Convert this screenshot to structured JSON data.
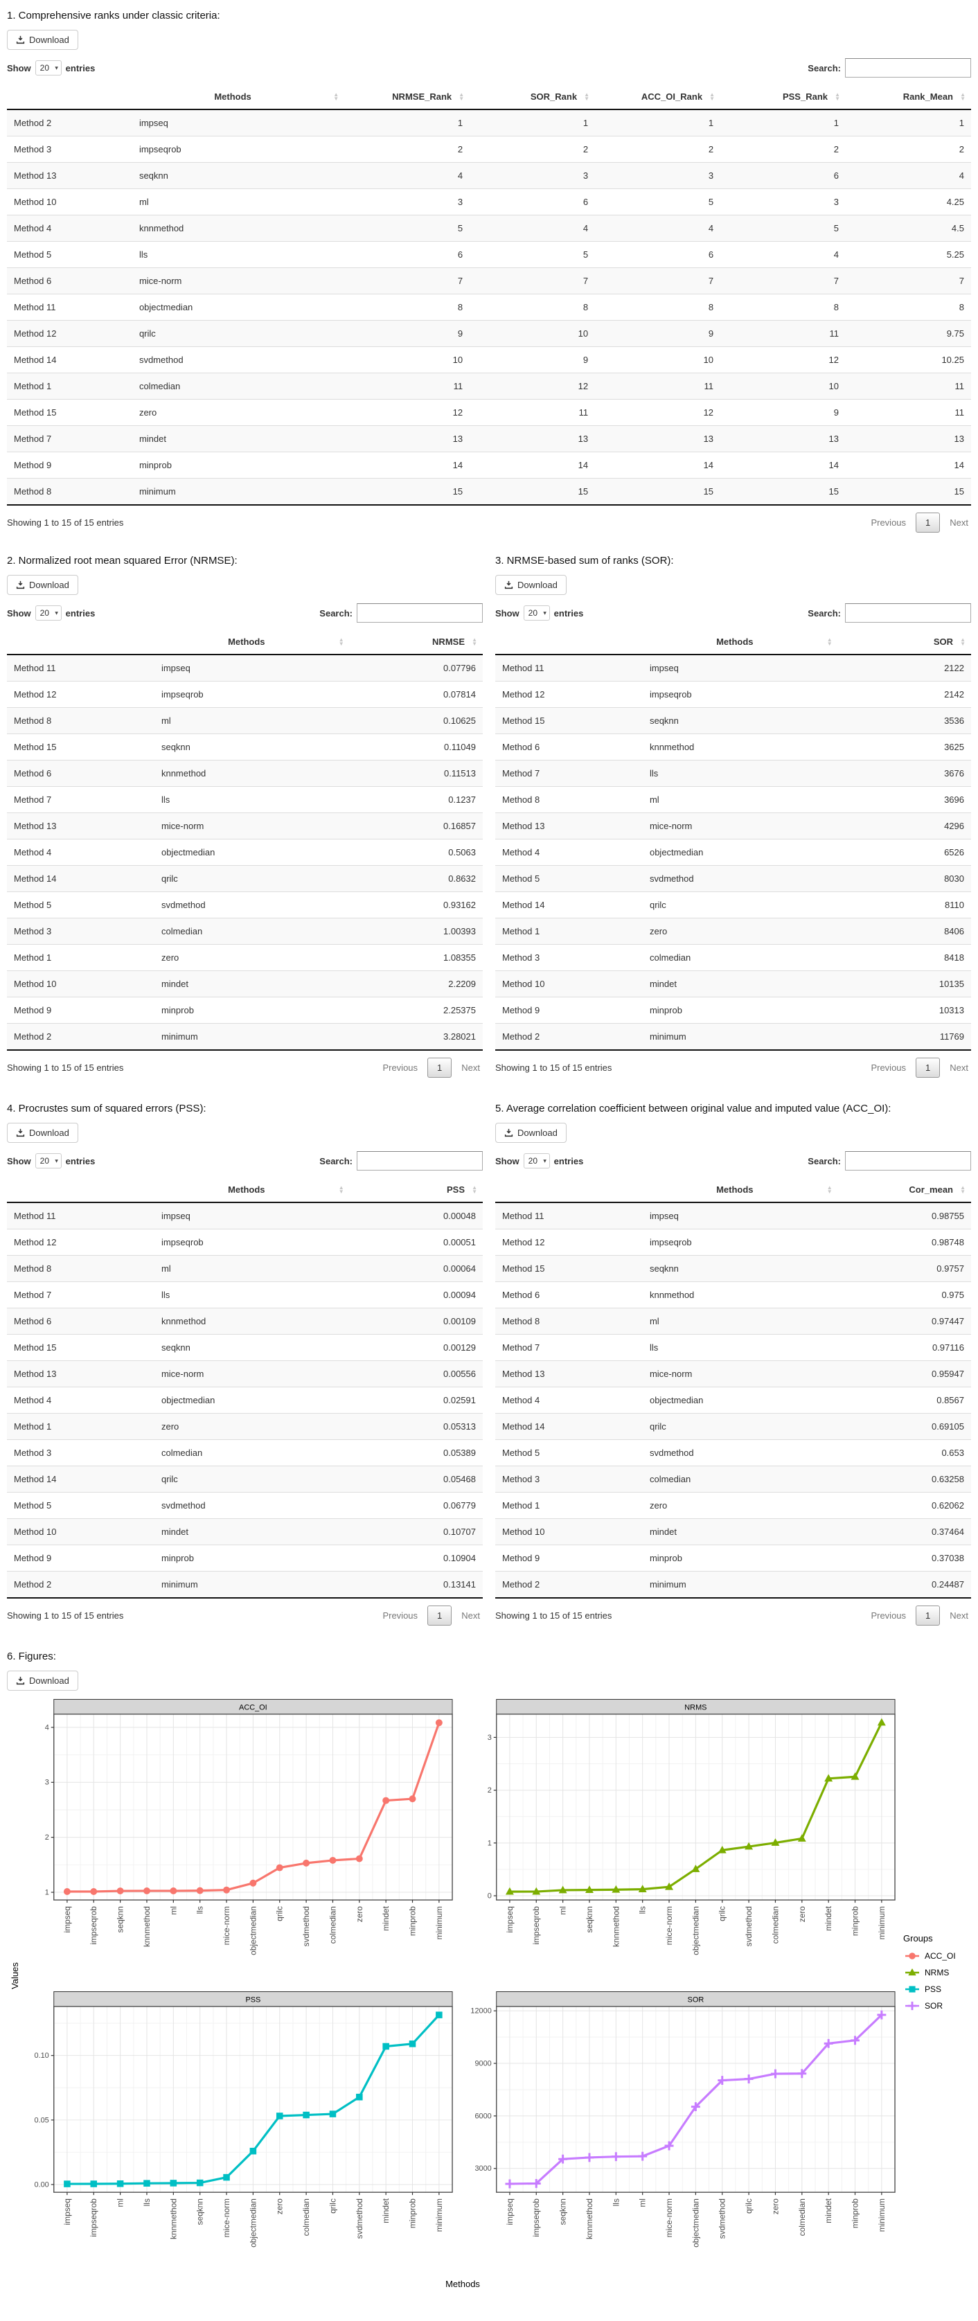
{
  "controls": {
    "download": "Download",
    "show": "Show",
    "page_length": "20",
    "entries": "entries",
    "search": "Search:",
    "info": "Showing 1 to 15 of 15 entries",
    "previous": "Previous",
    "page": "1",
    "next": "Next"
  },
  "sections": {
    "s1": {
      "title": "1. Comprehensive ranks under classic criteria:",
      "columns": [
        "",
        "Methods",
        "NRMSE_Rank",
        "SOR_Rank",
        "ACC_OI_Rank",
        "PSS_Rank",
        "Rank_Mean"
      ],
      "rows": [
        [
          "Method 2",
          "impseq",
          1,
          1,
          1,
          1,
          1
        ],
        [
          "Method 3",
          "impseqrob",
          2,
          2,
          2,
          2,
          2
        ],
        [
          "Method 13",
          "seqknn",
          4,
          3,
          3,
          6,
          4
        ],
        [
          "Method 10",
          "ml",
          3,
          6,
          5,
          3,
          4.25
        ],
        [
          "Method 4",
          "knnmethod",
          5,
          4,
          4,
          5,
          4.5
        ],
        [
          "Method 5",
          "lls",
          6,
          5,
          6,
          4,
          5.25
        ],
        [
          "Method 6",
          "mice-norm",
          7,
          7,
          7,
          7,
          7
        ],
        [
          "Method 11",
          "objectmedian",
          8,
          8,
          8,
          8,
          8
        ],
        [
          "Method 12",
          "qrilc",
          9,
          10,
          9,
          11,
          9.75
        ],
        [
          "Method 14",
          "svdmethod",
          10,
          9,
          10,
          12,
          10.25
        ],
        [
          "Method 1",
          "colmedian",
          11,
          12,
          11,
          10,
          11
        ],
        [
          "Method 15",
          "zero",
          12,
          11,
          12,
          9,
          11
        ],
        [
          "Method 7",
          "mindet",
          13,
          13,
          13,
          13,
          13
        ],
        [
          "Method 9",
          "minprob",
          14,
          14,
          14,
          14,
          14
        ],
        [
          "Method 8",
          "minimum",
          15,
          15,
          15,
          15,
          15
        ]
      ]
    },
    "s2": {
      "title": "2. Normalized root mean squared Error (NRMSE):",
      "columns": [
        "",
        "Methods",
        "NRMSE"
      ],
      "rows": [
        [
          "Method 11",
          "impseq",
          0.07796
        ],
        [
          "Method 12",
          "impseqrob",
          0.07814
        ],
        [
          "Method 8",
          "ml",
          0.10625
        ],
        [
          "Method 15",
          "seqknn",
          0.11049
        ],
        [
          "Method 6",
          "knnmethod",
          0.11513
        ],
        [
          "Method 7",
          "lls",
          0.1237
        ],
        [
          "Method 13",
          "mice-norm",
          0.16857
        ],
        [
          "Method 4",
          "objectmedian",
          0.5063
        ],
        [
          "Method 14",
          "qrilc",
          0.8632
        ],
        [
          "Method 5",
          "svdmethod",
          0.93162
        ],
        [
          "Method 3",
          "colmedian",
          1.00393
        ],
        [
          "Method 1",
          "zero",
          1.08355
        ],
        [
          "Method 10",
          "mindet",
          2.2209
        ],
        [
          "Method 9",
          "minprob",
          2.25375
        ],
        [
          "Method 2",
          "minimum",
          3.28021
        ]
      ]
    },
    "s3": {
      "title": "3. NRMSE-based sum of ranks (SOR):",
      "columns": [
        "",
        "Methods",
        "SOR"
      ],
      "rows": [
        [
          "Method 11",
          "impseq",
          2122
        ],
        [
          "Method 12",
          "impseqrob",
          2142
        ],
        [
          "Method 15",
          "seqknn",
          3536
        ],
        [
          "Method 6",
          "knnmethod",
          3625
        ],
        [
          "Method 7",
          "lls",
          3676
        ],
        [
          "Method 8",
          "ml",
          3696
        ],
        [
          "Method 13",
          "mice-norm",
          4296
        ],
        [
          "Method 4",
          "objectmedian",
          6526
        ],
        [
          "Method 5",
          "svdmethod",
          8030
        ],
        [
          "Method 14",
          "qrilc",
          8110
        ],
        [
          "Method 1",
          "zero",
          8406
        ],
        [
          "Method 3",
          "colmedian",
          8418
        ],
        [
          "Method 10",
          "mindet",
          10135
        ],
        [
          "Method 9",
          "minprob",
          10313
        ],
        [
          "Method 2",
          "minimum",
          11769
        ]
      ]
    },
    "s4": {
      "title": "4. Procrustes sum of squared errors (PSS):",
      "columns": [
        "",
        "Methods",
        "PSS"
      ],
      "rows": [
        [
          "Method 11",
          "impseq",
          0.00048
        ],
        [
          "Method 12",
          "impseqrob",
          0.00051
        ],
        [
          "Method 8",
          "ml",
          0.00064
        ],
        [
          "Method 7",
          "lls",
          0.00094
        ],
        [
          "Method 6",
          "knnmethod",
          0.00109
        ],
        [
          "Method 15",
          "seqknn",
          0.00129
        ],
        [
          "Method 13",
          "mice-norm",
          0.00556
        ],
        [
          "Method 4",
          "objectmedian",
          0.02591
        ],
        [
          "Method 1",
          "zero",
          0.05313
        ],
        [
          "Method 3",
          "colmedian",
          0.05389
        ],
        [
          "Method 14",
          "qrilc",
          0.05468
        ],
        [
          "Method 5",
          "svdmethod",
          0.06779
        ],
        [
          "Method 10",
          "mindet",
          0.10707
        ],
        [
          "Method 9",
          "minprob",
          0.10904
        ],
        [
          "Method 2",
          "minimum",
          0.13141
        ]
      ]
    },
    "s5": {
      "title": "5. Average correlation coefficient between original value and imputed value (ACC_OI):",
      "columns": [
        "",
        "Methods",
        "Cor_mean"
      ],
      "rows": [
        [
          "Method 11",
          "impseq",
          0.98755
        ],
        [
          "Method 12",
          "impseqrob",
          0.98748
        ],
        [
          "Method 15",
          "seqknn",
          0.9757
        ],
        [
          "Method 6",
          "knnmethod",
          0.975
        ],
        [
          "Method 8",
          "ml",
          0.97447
        ],
        [
          "Method 7",
          "lls",
          0.97116
        ],
        [
          "Method 13",
          "mice-norm",
          0.95947
        ],
        [
          "Method 4",
          "objectmedian",
          0.8567
        ],
        [
          "Method 14",
          "qrilc",
          0.69105
        ],
        [
          "Method 5",
          "svdmethod",
          0.653
        ],
        [
          "Method 3",
          "colmedian",
          0.63258
        ],
        [
          "Method 1",
          "zero",
          0.62062
        ],
        [
          "Method 10",
          "mindet",
          0.37464
        ],
        [
          "Method 9",
          "minprob",
          0.37038
        ],
        [
          "Method 2",
          "minimum",
          0.24487
        ]
      ]
    },
    "s6": {
      "title": "6. Figures:"
    }
  },
  "figure": {
    "ylabel": "Values",
    "xlabel": "Methods",
    "legend_title": "Groups",
    "legend": [
      {
        "label": "ACC_OI",
        "color": "#F8766D",
        "marker": "circle"
      },
      {
        "label": "NRMS",
        "color": "#7CAE00",
        "marker": "triangle"
      },
      {
        "label": "PSS",
        "color": "#00BFC4",
        "marker": "square"
      },
      {
        "label": "SOR",
        "color": "#C77CFF",
        "marker": "plus"
      }
    ]
  },
  "chart_data": [
    {
      "type": "line",
      "title": "ACC_OI",
      "color": "#F8766D",
      "marker": "circle",
      "categories": [
        "impseq",
        "impseqrob",
        "seqknn",
        "knnmethod",
        "ml",
        "lls",
        "mice-norm",
        "objectmedian",
        "qrilc",
        "svdmethod",
        "colmedian",
        "zero",
        "mindet",
        "minprob",
        "minimum"
      ],
      "values": [
        1.013,
        1.013,
        1.025,
        1.026,
        1.026,
        1.03,
        1.042,
        1.167,
        1.447,
        1.531,
        1.581,
        1.611,
        2.669,
        2.7,
        4.084
      ],
      "yticks": [
        1,
        2,
        3,
        4
      ],
      "ytick_labels": [
        "1",
        "2",
        "3",
        "4"
      ],
      "ylim": [
        0.86,
        4.24
      ],
      "grid": true,
      "xlabel": "Methods",
      "ylabel": "Values"
    },
    {
      "type": "line",
      "title": "NRMS",
      "color": "#7CAE00",
      "marker": "triangle",
      "categories": [
        "impseq",
        "impseqrob",
        "ml",
        "seqknn",
        "knnmethod",
        "lls",
        "mice-norm",
        "objectmedian",
        "qrilc",
        "svdmethod",
        "colmedian",
        "zero",
        "mindet",
        "minprob",
        "minimum"
      ],
      "values": [
        0.07796,
        0.07814,
        0.10625,
        0.11049,
        0.11513,
        0.1237,
        0.16857,
        0.5063,
        0.8632,
        0.93162,
        1.00393,
        1.08355,
        2.2209,
        2.25375,
        3.28021
      ],
      "yticks": [
        0,
        1,
        2,
        3
      ],
      "ytick_labels": [
        "0",
        "1",
        "2",
        "3"
      ],
      "ylim": [
        -0.08,
        3.44
      ],
      "grid": true,
      "xlabel": "Methods",
      "ylabel": "Values"
    },
    {
      "type": "line",
      "title": "PSS",
      "color": "#00BFC4",
      "marker": "square",
      "categories": [
        "impseq",
        "impseqrob",
        "ml",
        "lls",
        "knnmethod",
        "seqknn",
        "mice-norm",
        "objectmedian",
        "zero",
        "colmedian",
        "qrilc",
        "svdmethod",
        "mindet",
        "minprob",
        "minimum"
      ],
      "values": [
        0.00048,
        0.00051,
        0.00064,
        0.00094,
        0.00109,
        0.00129,
        0.00556,
        0.02591,
        0.05313,
        0.05389,
        0.05468,
        0.06779,
        0.10707,
        0.10904,
        0.13141
      ],
      "yticks": [
        0,
        0.05,
        0.1
      ],
      "ytick_labels": [
        "0.00",
        "0.05",
        "0.10"
      ],
      "ylim": [
        -0.006,
        0.138
      ],
      "grid": true,
      "xlabel": "Methods",
      "ylabel": "Values"
    },
    {
      "type": "line",
      "title": "SOR",
      "color": "#C77CFF",
      "marker": "plus",
      "categories": [
        "impseq",
        "impseqrob",
        "seqknn",
        "knnmethod",
        "lls",
        "ml",
        "mice-norm",
        "objectmedian",
        "svdmethod",
        "qrilc",
        "zero",
        "colmedian",
        "mindet",
        "minprob",
        "minimum"
      ],
      "values": [
        2122,
        2142,
        3536,
        3625,
        3676,
        3696,
        4296,
        6526,
        8030,
        8110,
        8406,
        8418,
        10135,
        10313,
        11769
      ],
      "yticks": [
        3000,
        6000,
        9000,
        12000
      ],
      "ytick_labels": [
        "3000",
        "6000",
        "9000",
        "12000"
      ],
      "ylim": [
        1640,
        12250
      ],
      "grid": true,
      "xlabel": "Methods",
      "ylabel": "Values"
    }
  ]
}
